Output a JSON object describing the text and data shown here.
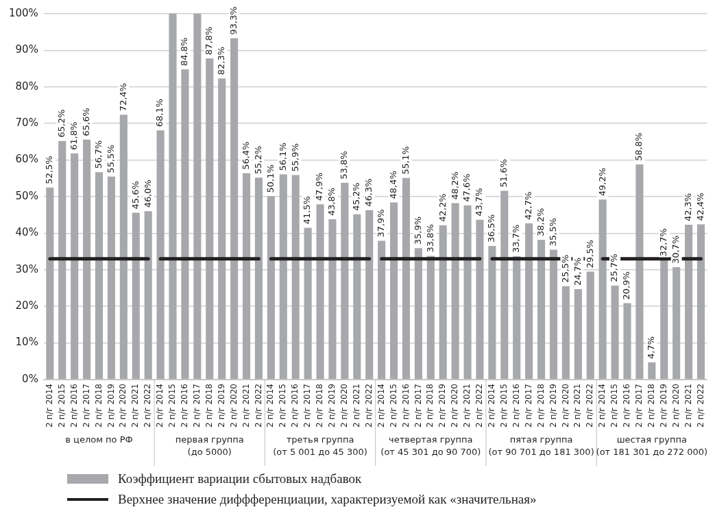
{
  "chart_data": {
    "type": "bar",
    "categories": [
      "2 п/г 2014",
      "2 п/г 2015",
      "2 п/г 2016",
      "2 п/г 2017",
      "2 п/г 2018",
      "2 п/г 2019",
      "2 п/г 2020",
      "2 п/г 2021",
      "2 п/г 2022",
      "2 п/г 2014",
      "2 п/г 2015",
      "2 п/г 2016",
      "2 п/г 2017",
      "2 п/г 2018",
      "2 п/г 2019",
      "2 п/г 2020",
      "2 п/г 2021",
      "2 п/г 2022",
      "2 п/г 2014",
      "2 п/г 2015",
      "2 п/г 2016",
      "2 п/г 2017",
      "2 п/г 2018",
      "2 п/г 2019",
      "2 п/г 2020",
      "2 п/г 2021",
      "2 п/г 2022",
      "2 п/г 2014",
      "2 п/г 2015",
      "2 п/г 2016",
      "2 п/г 2017",
      "2 п/г 2018",
      "2 п/г 2019",
      "2 п/г 2020",
      "2 п/г 2021",
      "2 п/г 2022",
      "2 п/г 2014",
      "2 п/г 2015",
      "2 п/г 2016",
      "2 п/г 2017",
      "2 п/г 2018",
      "2 п/г 2019",
      "2 п/г 2020",
      "2 п/г 2021",
      "2 п/г 2022",
      "2 п/г 2014",
      "2 п/г 2015",
      "2 п/г 2016",
      "2 п/г 2017",
      "2 п/г 2018",
      "2 п/г 2019",
      "2 п/г 2020",
      "2 п/г 2021",
      "2 п/г 2022"
    ],
    "series": [
      {
        "name": "Коэффициент вариации сбытовых надбавок",
        "color": "#a7a8ab",
        "values": [
          52.5,
          65.2,
          61.8,
          65.6,
          56.7,
          55.5,
          72.4,
          45.6,
          46.0,
          68.1,
          100,
          84.8,
          100,
          87.8,
          82.3,
          93.3,
          56.4,
          55.2,
          50.1,
          56.1,
          55.9,
          41.5,
          47.9,
          43.8,
          53.8,
          45.2,
          46.3,
          37.9,
          48.4,
          55.1,
          35.9,
          33.8,
          42.2,
          48.2,
          47.6,
          43.7,
          36.5,
          51.6,
          33.7,
          42.7,
          38.2,
          35.5,
          25.5,
          24.7,
          29.5,
          49.2,
          25.7,
          20.9,
          58.8,
          4.7,
          32.7,
          30.7,
          42.3,
          42.4
        ],
        "value_labels": [
          "52,5%",
          "65,2%",
          "61,8%",
          "65,6%",
          "56,7%",
          "55,5%",
          "72,4%",
          "45,6%",
          "46,0%",
          "68,1%",
          null,
          "84,8%",
          null,
          "87,8%",
          "82,3%",
          "93,3%",
          "56,4%",
          "55,2%",
          "50,1%",
          "56,1%",
          "55,9%",
          "41,5%",
          "47,9%",
          "43,8%",
          "53,8%",
          "45,2%",
          "46,3%",
          "37,9%",
          "48,4%",
          "55,1%",
          "35,9%",
          "33,8%",
          "42,2%",
          "48,2%",
          "47,6%",
          "43,7%",
          "36,5%",
          "51,6%",
          "33,7%",
          "42,7%",
          "38,2%",
          "35,5%",
          "25,5%",
          "24,7%",
          "29,5%",
          "49,2%",
          "25,7%",
          "20,9%",
          "58,8%",
          "4,7%",
          "32,7%",
          "30,7%",
          "42,3%",
          "42,4%"
        ]
      }
    ],
    "ylim": [
      0,
      100
    ],
    "yticks": [
      {
        "value": 0,
        "label": "0%"
      },
      {
        "value": 10,
        "label": "10%"
      },
      {
        "value": 20,
        "label": "20%"
      },
      {
        "value": 30,
        "label": "30%"
      },
      {
        "value": 40,
        "label": "40%"
      },
      {
        "value": 50,
        "label": "50%"
      },
      {
        "value": 60,
        "label": "60%"
      },
      {
        "value": 70,
        "label": "70%"
      },
      {
        "value": 80,
        "label": "80%"
      },
      {
        "value": 90,
        "label": "90%"
      },
      {
        "value": 100,
        "label": "100%"
      }
    ],
    "grid": "y",
    "legend": "bottom",
    "ref_lines": [
      {
        "axis": "y",
        "value": 33,
        "label": "Верхнее значение диффференциации, характеризуемой как «значительная»",
        "color": "#231f20"
      }
    ],
    "annotations": [
      "в целом по РФ",
      "первая группа (до 5000)",
      "третья группа (от 5 001 до 45 300)",
      "четвертая группа (от 45 301 до 90 700)",
      "пятая группа (от 90 701 до 181 300)",
      "шестая группа (от 181 301 до 272 000)"
    ]
  }
}
